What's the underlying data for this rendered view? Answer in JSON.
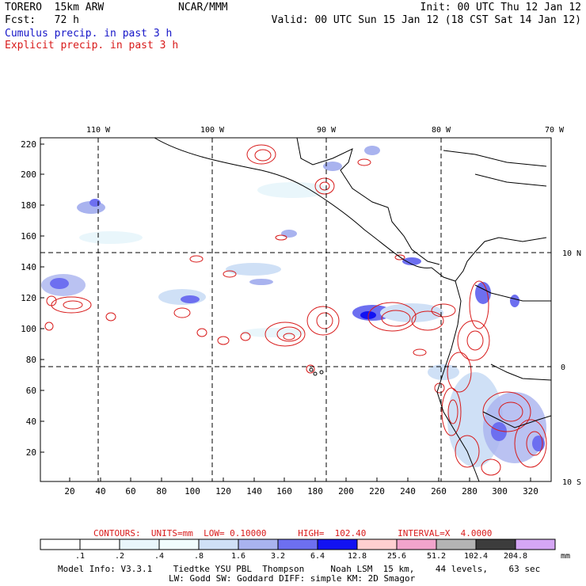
{
  "header": {
    "line1_left": "TORERO  15km ARW",
    "line2_left": "Fcst:   72 h",
    "center": "NCAR/MMM",
    "line1_right": "Init: 00 UTC Thu 12 Jan 12",
    "line2_right": "Valid: 00 UTC Sun 15 Jan 12 (18 CST Sat 14 Jan 12)"
  },
  "legend": {
    "cumulus": "Cumulus precip. in past 3 h",
    "explicit": "Explicit precip. in past 3 h"
  },
  "map": {
    "lon_labels": [
      "110 W",
      "100 W",
      "90 W",
      "80 W",
      "70 W"
    ],
    "lat_labels_right": [
      "10 N",
      "0",
      "10 S"
    ],
    "y_ticks": [
      "220",
      "200",
      "180",
      "160",
      "140",
      "120",
      "100",
      "80",
      "60",
      "40",
      "20"
    ],
    "x_ticks": [
      "20",
      "40",
      "60",
      "80",
      "100",
      "120",
      "140",
      "160",
      "180",
      "200",
      "220",
      "240",
      "260",
      "280",
      "300",
      "320"
    ]
  },
  "contours": {
    "text": "CONTOURS:  UNITS=mm  LOW= 0.10000      HIGH=  102.40      INTERVAL=X  4.0000"
  },
  "colorbar": {
    "labels": [
      ".1",
      ".2",
      ".4",
      ".8",
      "1.6",
      "3.2",
      "6.4",
      "12.8",
      "25.6",
      "51.2",
      "102.4",
      "204.8"
    ],
    "unit": "mm",
    "colors": [
      "#ffffff",
      "#ffffff",
      "#e9f6fb",
      "#f1fdfd",
      "#cfe0f6",
      "#a9b3ef",
      "#6d6ff0",
      "#1212f2",
      "#ffcfd0",
      "#f2a4cc",
      "#b4b4b4",
      "#3c3c3c",
      "#d5a6f5"
    ]
  },
  "footer": {
    "line1": "Model Info: V3.3.1    Tiedtke YSU PBL  Thompson     Noah LSM  15 km,    44 levels,    63 sec",
    "line2": "LW: Godd SW: Goddard DIFF: simple KM: 2D Smagor"
  }
}
